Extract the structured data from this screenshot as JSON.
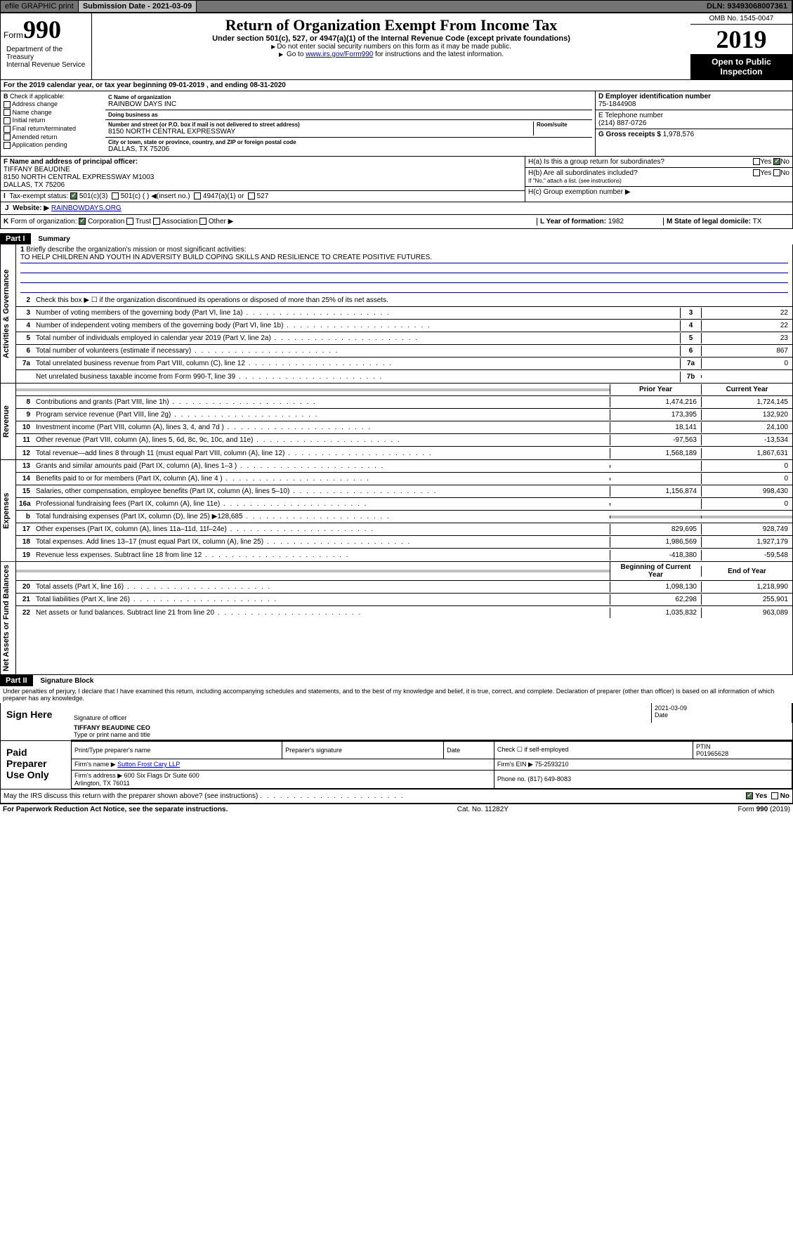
{
  "topbar": {
    "efile": "efile GRAPHIC print",
    "submission_label": "Submission Date - 2021-03-09",
    "dln": "DLN: 93493068007361"
  },
  "header": {
    "form_label": "Form",
    "form_num": "990",
    "title": "Return of Organization Exempt From Income Tax",
    "subtitle": "Under section 501(c), 527, or 4947(a)(1) of the Internal Revenue Code (except private foundations)",
    "note1": "Do not enter social security numbers on this form as it may be made public.",
    "note2_pre": "Go to ",
    "note2_link": "www.irs.gov/Form990",
    "note2_post": " for instructions and the latest information.",
    "omb": "OMB No. 1545-0047",
    "year": "2019",
    "open_public": "Open to Public Inspection",
    "dept": "Department of the Treasury\nInternal Revenue Service"
  },
  "lineA": "For the 2019 calendar year, or tax year beginning 09-01-2019   , and ending 08-31-2020",
  "boxB": {
    "label": "Check if applicable:",
    "items": [
      "Address change",
      "Name change",
      "Initial return",
      "Final return/terminated",
      "Amended return",
      "Application pending"
    ]
  },
  "boxC": {
    "name_lbl": "C Name of organization",
    "name": "RAINBOW DAYS INC",
    "dba_lbl": "Doing business as",
    "dba": "",
    "addr_lbl": "Number and street (or P.O. box if mail is not delivered to street address)",
    "room_lbl": "Room/suite",
    "addr": "8150 NORTH CENTRAL EXPRESSWAY",
    "city_lbl": "City or town, state or province, country, and ZIP or foreign postal code",
    "city": "DALLAS, TX  75206"
  },
  "boxD": {
    "lbl": "D Employer identification number",
    "val": "75-1844908"
  },
  "boxE": {
    "lbl": "E Telephone number",
    "val": "(214) 887-0726"
  },
  "boxG": {
    "lbl": "G Gross receipts $",
    "val": "1,978,576"
  },
  "boxF": {
    "lbl": "F  Name and address of principal officer:",
    "name": "TIFFANY BEAUDINE",
    "addr": "8150 NORTH CENTRAL EXPRESSWAY M1003\nDALLAS, TX  75206"
  },
  "boxH": {
    "a_lbl": "H(a)  Is this a group return for subordinates?",
    "b_lbl": "H(b)  Are all subordinates included?",
    "b_note": "If \"No,\" attach a list. (see instructions)",
    "c_lbl": "H(c)  Group exemption number ▶"
  },
  "boxI": {
    "lbl": "Tax-exempt status:",
    "opts": [
      "501(c)(3)",
      "501(c) (  ) ◀(insert no.)",
      "4947(a)(1) or",
      "527"
    ]
  },
  "boxJ": {
    "lbl": "Website: ▶",
    "val": "RAINBOWDAYS.ORG"
  },
  "boxK": {
    "lbl": "Form of organization:",
    "opts": [
      "Corporation",
      "Trust",
      "Association",
      "Other ▶"
    ]
  },
  "boxL": {
    "lbl": "L Year of formation:",
    "val": "1982"
  },
  "boxM": {
    "lbl": "M State of legal domicile:",
    "val": "TX"
  },
  "part1": {
    "title": "Part I",
    "subtitle": "Summary",
    "mission_lbl": "Briefly describe the organization's mission or most significant activities:",
    "mission": "TO HELP CHILDREN AND YOUTH IN ADVERSITY BUILD COPING SKILLS AND RESILIENCE TO CREATE POSITIVE FUTURES.",
    "line2": "Check this box ▶ ☐  if the organization discontinued its operations or disposed of more than 25% of its net assets.",
    "sections": {
      "governance": "Activities & Governance",
      "revenue": "Revenue",
      "expenses": "Expenses",
      "netassets": "Net Assets or Fund Balances"
    },
    "col_prior": "Prior Year",
    "col_current": "Current Year",
    "col_begin": "Beginning of Current Year",
    "col_end": "End of Year",
    "rows_gov": [
      {
        "n": "3",
        "t": "Number of voting members of the governing body (Part VI, line 1a)",
        "box": "3",
        "v": "22"
      },
      {
        "n": "4",
        "t": "Number of independent voting members of the governing body (Part VI, line 1b)",
        "box": "4",
        "v": "22"
      },
      {
        "n": "5",
        "t": "Total number of individuals employed in calendar year 2019 (Part V, line 2a)",
        "box": "5",
        "v": "23"
      },
      {
        "n": "6",
        "t": "Total number of volunteers (estimate if necessary)",
        "box": "6",
        "v": "867"
      },
      {
        "n": "7a",
        "t": "Total unrelated business revenue from Part VIII, column (C), line 12",
        "box": "7a",
        "v": "0"
      },
      {
        "n": "",
        "t": "Net unrelated business taxable income from Form 990-T, line 39",
        "box": "7b",
        "v": ""
      }
    ],
    "rows_rev": [
      {
        "n": "8",
        "t": "Contributions and grants (Part VIII, line 1h)",
        "p": "1,474,216",
        "c": "1,724,145"
      },
      {
        "n": "9",
        "t": "Program service revenue (Part VIII, line 2g)",
        "p": "173,395",
        "c": "132,920"
      },
      {
        "n": "10",
        "t": "Investment income (Part VIII, column (A), lines 3, 4, and 7d )",
        "p": "18,141",
        "c": "24,100"
      },
      {
        "n": "11",
        "t": "Other revenue (Part VIII, column (A), lines 5, 6d, 8c, 9c, 10c, and 11e)",
        "p": "-97,563",
        "c": "-13,534"
      },
      {
        "n": "12",
        "t": "Total revenue—add lines 8 through 11 (must equal Part VIII, column (A), line 12)",
        "p": "1,568,189",
        "c": "1,867,631"
      }
    ],
    "rows_exp": [
      {
        "n": "13",
        "t": "Grants and similar amounts paid (Part IX, column (A), lines 1–3 )",
        "p": "",
        "c": "0"
      },
      {
        "n": "14",
        "t": "Benefits paid to or for members (Part IX, column (A), line 4 )",
        "p": "",
        "c": "0"
      },
      {
        "n": "15",
        "t": "Salaries, other compensation, employee benefits (Part IX, column (A), lines 5–10)",
        "p": "1,156,874",
        "c": "998,430"
      },
      {
        "n": "16a",
        "t": "Professional fundraising fees (Part IX, column (A), line 11e)",
        "p": "",
        "c": "0"
      },
      {
        "n": "b",
        "t": "Total fundraising expenses (Part IX, column (D), line 25) ▶128,685",
        "p": "GREY",
        "c": "GREY"
      },
      {
        "n": "17",
        "t": "Other expenses (Part IX, column (A), lines 11a–11d, 11f–24e)",
        "p": "829,695",
        "c": "928,749"
      },
      {
        "n": "18",
        "t": "Total expenses. Add lines 13–17 (must equal Part IX, column (A), line 25)",
        "p": "1,986,569",
        "c": "1,927,179"
      },
      {
        "n": "19",
        "t": "Revenue less expenses. Subtract line 18 from line 12",
        "p": "-418,380",
        "c": "-59,548"
      }
    ],
    "rows_net": [
      {
        "n": "20",
        "t": "Total assets (Part X, line 16)",
        "p": "1,098,130",
        "c": "1,218,990"
      },
      {
        "n": "21",
        "t": "Total liabilities (Part X, line 26)",
        "p": "62,298",
        "c": "255,901"
      },
      {
        "n": "22",
        "t": "Net assets or fund balances. Subtract line 21 from line 20",
        "p": "1,035,832",
        "c": "963,089"
      }
    ]
  },
  "part2": {
    "title": "Part II",
    "subtitle": "Signature Block",
    "perjury": "Under penalties of perjury, I declare that I have examined this return, including accompanying schedules and statements, and to the best of my knowledge and belief, it is true, correct, and complete. Declaration of preparer (other than officer) is based on all information of which preparer has any knowledge.",
    "sign_here": "Sign Here",
    "sig_officer": "Signature of officer",
    "sig_date": "2021-03-09",
    "date_lbl": "Date",
    "officer_name": "TIFFANY BEAUDINE  CEO",
    "type_name": "Type or print name and title",
    "paid_prep": "Paid Preparer Use Only",
    "prep_name_lbl": "Print/Type preparer's name",
    "prep_sig_lbl": "Preparer's signature",
    "prep_date_lbl": "Date",
    "check_self": "Check ☐ if self-employed",
    "ptin_lbl": "PTIN",
    "ptin": "P01965628",
    "firm_name_lbl": "Firm's name    ▶",
    "firm_name": "Sutton Frost Cary LLP",
    "firm_ein_lbl": "Firm's EIN ▶",
    "firm_ein": "75-2593210",
    "firm_addr_lbl": "Firm's address ▶",
    "firm_addr": "600 Six Flags Dr Suite 600\nArlington, TX  76011",
    "phone_lbl": "Phone no.",
    "phone": "(817) 649-8083",
    "discuss": "May the IRS discuss this return with the preparer shown above? (see instructions)"
  },
  "footer": {
    "paperwork": "For Paperwork Reduction Act Notice, see the separate instructions.",
    "cat": "Cat. No. 11282Y",
    "form": "Form 990 (2019)"
  }
}
